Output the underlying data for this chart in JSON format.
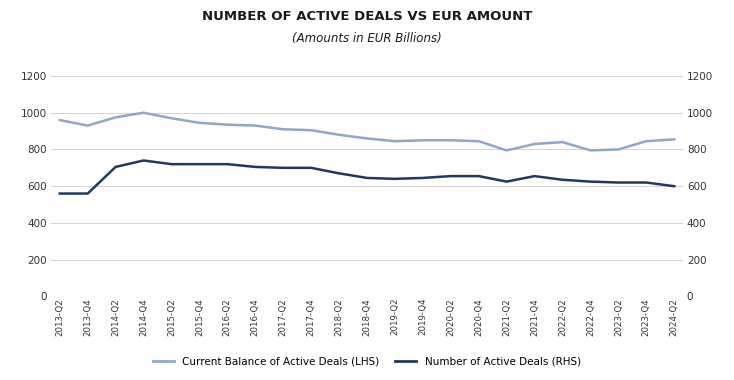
{
  "title": "NUMBER OF ACTIVE DEALS VS EUR AMOUNT",
  "subtitle": "(Amounts in EUR Billions)",
  "x_labels": [
    "2013-Q2",
    "2013-Q4",
    "2014-Q2",
    "2014-Q4",
    "2015-Q2",
    "2015-Q4",
    "2016-Q2",
    "2016-Q4",
    "2017-Q2",
    "2017-Q4",
    "2018-Q2",
    "2018-Q4",
    "2019-Q2",
    "2019-Q4",
    "2020-Q2",
    "2020-Q4",
    "2021-Q2",
    "2021-Q4",
    "2022-Q2",
    "2022-Q4",
    "2023-Q2",
    "2023-Q4",
    "2024-Q2"
  ],
  "lhs_values": [
    960,
    930,
    975,
    1000,
    970,
    945,
    935,
    930,
    910,
    905,
    880,
    860,
    845,
    850,
    850,
    845,
    795,
    830,
    840,
    795,
    800,
    845,
    855
  ],
  "rhs_values": [
    560,
    560,
    705,
    740,
    720,
    720,
    720,
    705,
    700,
    700,
    670,
    645,
    640,
    645,
    655,
    655,
    625,
    655,
    635,
    625,
    620,
    620,
    600
  ],
  "lhs_color": "#8fa8c8",
  "rhs_color": "#1f3864",
  "ylim": [
    0,
    1200
  ],
  "yticks": [
    0,
    200,
    400,
    600,
    800,
    1000,
    1200
  ],
  "legend_lhs": "Current Balance of Active Deals (LHS)",
  "legend_rhs": "Number of Active Deals (RHS)",
  "line_width": 1.8,
  "background_color": "#ffffff",
  "grid_color": "#cccccc"
}
